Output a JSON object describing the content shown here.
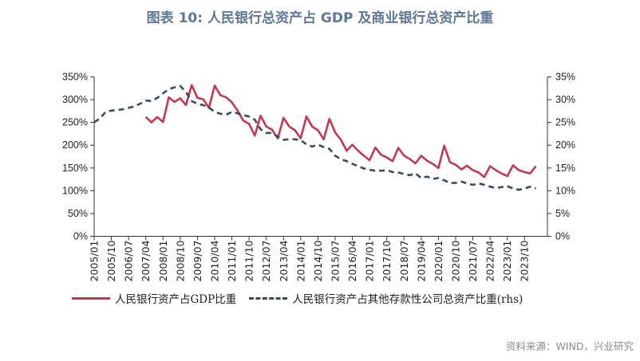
{
  "title": "图表 10: 人民银行总资产占 GDP 及商业银行总资产比重",
  "source": "资料来源：WIND，兴业研究",
  "chart_data": {
    "type": "line",
    "title": "图表 10: 人民银行总资产占 GDP 及商业银行总资产比重",
    "x": [
      "2005/01",
      "2005/04",
      "2005/07",
      "2005/10",
      "2006/01",
      "2006/04",
      "2006/07",
      "2006/10",
      "2007/01",
      "2007/04",
      "2007/07",
      "2007/10",
      "2008/01",
      "2008/04",
      "2008/07",
      "2008/10",
      "2009/01",
      "2009/04",
      "2009/07",
      "2009/10",
      "2010/01",
      "2010/04",
      "2010/07",
      "2010/10",
      "2011/01",
      "2011/04",
      "2011/07",
      "2011/10",
      "2012/01",
      "2012/04",
      "2012/07",
      "2012/10",
      "2013/01",
      "2013/04",
      "2013/07",
      "2013/10",
      "2014/01",
      "2014/04",
      "2014/07",
      "2014/10",
      "2015/01",
      "2015/04",
      "2015/07",
      "2015/10",
      "2016/01",
      "2016/04",
      "2016/07",
      "2016/10",
      "2017/01",
      "2017/04",
      "2017/07",
      "2017/10",
      "2018/01",
      "2018/04",
      "2018/07",
      "2018/10",
      "2019/01",
      "2019/04",
      "2019/07",
      "2019/10",
      "2020/01",
      "2020/04",
      "2020/07",
      "2020/10",
      "2021/01",
      "2021/04",
      "2021/07",
      "2021/10",
      "2022/01",
      "2022/04",
      "2022/07",
      "2022/10",
      "2023/01",
      "2023/04",
      "2023/07",
      "2023/10",
      "2024/01",
      "2024/04"
    ],
    "x_tick_labels": [
      "2005/01",
      "2005/10",
      "2006/07",
      "2007/04",
      "2008/01",
      "2008/10",
      "2009/07",
      "2010/04",
      "2011/01",
      "2011/10",
      "2012/07",
      "2013/04",
      "2014/01",
      "2014/10",
      "2015/07",
      "2016/04",
      "2017/01",
      "2017/10",
      "2018/07",
      "2019/04",
      "2020/01",
      "2020/10",
      "2021/07",
      "2022/04",
      "2023/01",
      "2023/10"
    ],
    "y_left": {
      "range": [
        0,
        350
      ],
      "ticks": [
        "0%",
        "50%",
        "100%",
        "150%",
        "200%",
        "250%",
        "300%",
        "350%"
      ]
    },
    "y_right": {
      "range": [
        0,
        35
      ],
      "ticks": [
        "0%",
        "5%",
        "10%",
        "15%",
        "20%",
        "25%",
        "30%",
        "35%"
      ]
    },
    "grid": false,
    "legend_position": "bottom",
    "series": [
      {
        "name": "人民银行资产占GDP比重",
        "axis": "left",
        "color": "#c23a50",
        "style": "solid",
        "values": [
          null,
          null,
          null,
          null,
          null,
          null,
          null,
          null,
          null,
          262,
          250,
          262,
          251,
          305,
          295,
          303,
          288,
          332,
          304,
          301,
          282,
          331,
          310,
          305,
          294,
          276,
          254,
          247,
          221,
          265,
          241,
          234,
          215,
          260,
          241,
          233,
          215,
          263,
          241,
          233,
          213,
          258,
          228,
          212,
          188,
          201,
          188,
          177,
          167,
          195,
          179,
          173,
          165,
          194,
          177,
          170,
          160,
          177,
          166,
          159,
          150,
          199,
          163,
          157,
          147,
          155,
          145,
          140,
          130,
          154,
          145,
          138,
          132,
          156,
          145,
          141,
          138,
          154
        ]
      },
      {
        "name": "人民银行资产占其他存款性公司总资产比重(rhs)",
        "axis": "right",
        "color": "#3b4a60",
        "style": "dashed",
        "values": [
          25.0,
          25.9,
          27.3,
          27.6,
          27.7,
          27.9,
          28.2,
          28.5,
          29.1,
          29.8,
          29.7,
          30.4,
          31.4,
          32.3,
          32.7,
          33.0,
          31.7,
          29.7,
          29.1,
          28.8,
          28.3,
          27.3,
          26.9,
          26.7,
          27.3,
          27.0,
          26.6,
          26.3,
          25.6,
          23.5,
          22.7,
          22.7,
          21.9,
          21.2,
          21.3,
          21.3,
          21.1,
          20.2,
          19.7,
          20.1,
          19.6,
          19.2,
          17.7,
          16.9,
          16.5,
          15.9,
          15.4,
          14.9,
          14.6,
          14.4,
          14.4,
          14.5,
          14.1,
          14.0,
          13.7,
          13.4,
          13.8,
          12.8,
          13.1,
          12.6,
          12.8,
          12.3,
          11.7,
          11.7,
          12.0,
          11.6,
          11.3,
          11.6,
          11.3,
          10.9,
          10.6,
          10.8,
          11.0,
          10.5,
          10.2,
          10.5,
          10.9,
          10.5
        ]
      }
    ]
  }
}
